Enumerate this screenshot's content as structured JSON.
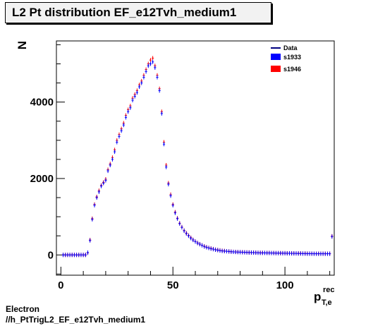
{
  "title": "L2 Pt distribution EF_e12Tvh_medium1",
  "footer": {
    "line1": "Electron",
    "line2": "//h_PtTrigL2_EF_e12Tvh_medium1"
  },
  "colors": {
    "data": "#00007f",
    "s1933": "#0000ff",
    "s1946": "#ff0000"
  },
  "chart_data": {
    "type": "scatter",
    "title": "L2 Pt distribution EF_e12Tvh_medium1",
    "xlabel_main": "p",
    "xlabel_sup": "rec",
    "xlabel_sub": "T,e",
    "ylabel": "N",
    "xlim": [
      -2,
      122
    ],
    "ylim": [
      -530,
      5600
    ],
    "xticks": [
      0,
      50,
      100
    ],
    "yticks": [
      0,
      2000,
      4000
    ],
    "grid": false,
    "legend_position": "top-right",
    "legend": [
      {
        "name": "Data",
        "style": "line"
      },
      {
        "name": "s1933",
        "style": "box"
      },
      {
        "name": "s1946",
        "style": "box"
      }
    ],
    "x": [
      1,
      2,
      3,
      4,
      5,
      6,
      7,
      8,
      9,
      10,
      11,
      12,
      13,
      14,
      15,
      16,
      17,
      18,
      19,
      20,
      21,
      22,
      23,
      24,
      25,
      26,
      27,
      28,
      29,
      30,
      31,
      32,
      33,
      34,
      35,
      36,
      37,
      38,
      39,
      40,
      41,
      42,
      43,
      44,
      45,
      46,
      47,
      48,
      49,
      50,
      51,
      52,
      53,
      54,
      55,
      56,
      57,
      58,
      59,
      60,
      61,
      62,
      63,
      64,
      65,
      66,
      67,
      68,
      69,
      70,
      71,
      72,
      73,
      74,
      75,
      76,
      77,
      78,
      79,
      80,
      81,
      82,
      83,
      84,
      85,
      86,
      87,
      88,
      89,
      90,
      91,
      92,
      93,
      94,
      95,
      96,
      97,
      98,
      99,
      100,
      101,
      102,
      103,
      104,
      105,
      106,
      107,
      108,
      109,
      110,
      111,
      112,
      113,
      114,
      115,
      116,
      117,
      118,
      119,
      120,
      121
    ],
    "series": [
      {
        "name": "s1933",
        "values": [
          0,
          0,
          0,
          0,
          0,
          0,
          0,
          0,
          0,
          0,
          0,
          60,
          380,
          930,
          1300,
          1500,
          1650,
          1800,
          1880,
          1950,
          2200,
          2350,
          2500,
          2700,
          2950,
          3100,
          3250,
          3400,
          3600,
          3750,
          3850,
          4050,
          4150,
          4250,
          4400,
          4500,
          4650,
          4800,
          4950,
          5000,
          5050,
          4900,
          4650,
          4300,
          3700,
          2900,
          2300,
          1850,
          1550,
          1300,
          1100,
          950,
          820,
          720,
          630,
          560,
          500,
          440,
          390,
          350,
          310,
          280,
          250,
          220,
          200,
          180,
          165,
          150,
          135,
          125,
          115,
          105,
          100,
          95,
          90,
          85,
          80,
          78,
          75,
          72,
          70,
          68,
          66,
          64,
          62,
          60,
          58,
          56,
          55,
          54,
          53,
          52,
          51,
          50,
          49,
          48,
          47,
          46,
          45,
          44,
          43,
          42,
          41,
          40,
          39,
          38,
          37,
          36,
          35,
          34,
          33,
          32,
          31,
          30,
          30,
          30,
          30,
          30,
          30,
          30,
          480
        ]
      },
      {
        "name": "s1946",
        "values": [
          0,
          0,
          0,
          0,
          0,
          0,
          0,
          0,
          0,
          0,
          0,
          55,
          390,
          950,
          1320,
          1520,
          1680,
          1820,
          1900,
          1980,
          2230,
          2380,
          2550,
          2750,
          3000,
          3150,
          3300,
          3450,
          3650,
          3800,
          3900,
          4100,
          4200,
          4300,
          4450,
          4550,
          4700,
          4850,
          5000,
          5100,
          5150,
          4950,
          4700,
          4350,
          3750,
          2950,
          2350,
          1880,
          1580,
          1320,
          1120,
          960,
          830,
          730,
          640,
          570,
          510,
          450,
          395,
          355,
          315,
          285,
          255,
          225,
          205,
          185,
          170,
          155,
          140,
          130,
          120,
          110,
          105,
          98,
          92,
          87,
          82,
          80,
          77,
          74,
          72,
          70,
          68,
          66,
          64,
          62,
          60,
          58,
          57,
          56,
          55,
          54,
          53,
          52,
          51,
          50,
          49,
          48,
          47,
          46,
          45,
          44,
          43,
          42,
          41,
          40,
          39,
          38,
          37,
          36,
          35,
          34,
          33,
          32,
          32,
          32,
          32,
          32,
          32,
          32,
          490
        ]
      }
    ]
  }
}
